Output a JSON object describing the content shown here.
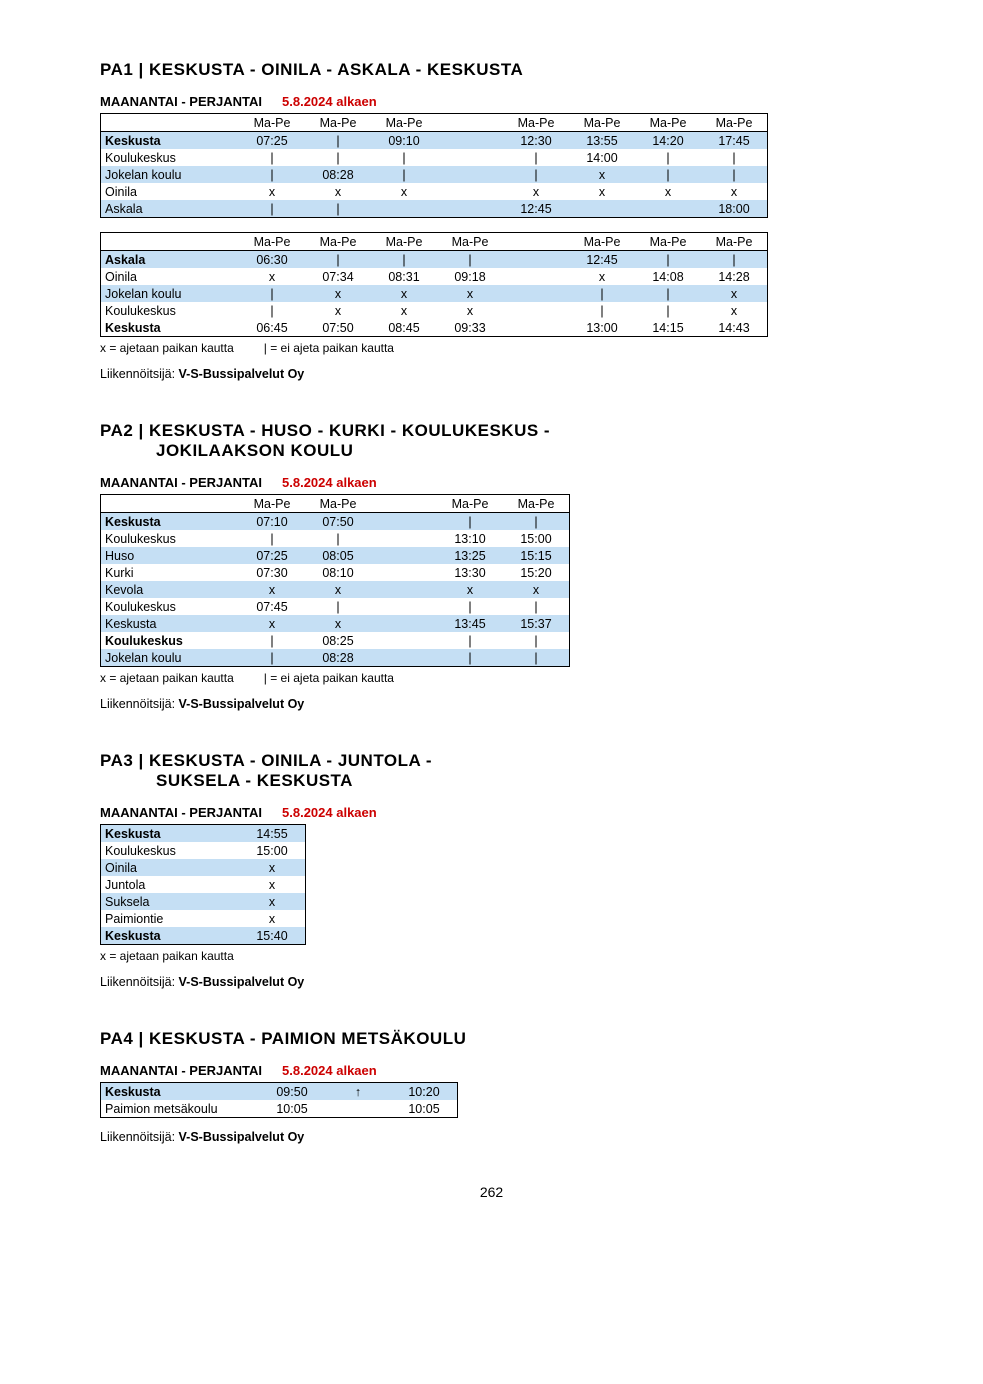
{
  "page_number": "262",
  "colors": {
    "row_highlight": "#c5dff4",
    "effective_date": "#cc0000",
    "border": "#000000",
    "text": "#000000"
  },
  "legend": {
    "x_text": "x  = ajetaan paikan kautta",
    "pipe_text": "|  = ei ajeta paikan kautta",
    "x_only": "x  = ajetaan paikan kautta"
  },
  "operator_label": "Liikennöitsijä:",
  "operator_name": "V-S-Bussipalvelut Oy",
  "routes": [
    {
      "code": "PA1",
      "title_lines": [
        "PA1 |  KESKUSTA - OINILA - ASKALA - KESKUSTA"
      ],
      "days": "MAANANTAI - PERJANTAI",
      "effective": "5.8.2024 alkaen",
      "tables": [
        {
          "n_cols": 8,
          "headers": [
            "Ma-Pe",
            "Ma-Pe",
            "Ma-Pe",
            "",
            "Ma-Pe",
            "Ma-Pe",
            "Ma-Pe",
            "Ma-Pe"
          ],
          "rows": [
            {
              "stop": "Keskusta",
              "bold": true,
              "blue": true,
              "vals": [
                "07:25",
                "|",
                "09:10",
                "",
                "12:30",
                "13:55",
                "14:20",
                "17:45"
              ]
            },
            {
              "stop": "Koulukeskus",
              "bold": false,
              "blue": false,
              "vals": [
                "|",
                "|",
                "|",
                "",
                "|",
                "14:00",
                "|",
                "|"
              ]
            },
            {
              "stop": "Jokelan koulu",
              "bold": false,
              "blue": true,
              "vals": [
                "|",
                "08:28",
                "|",
                "",
                "|",
                "x",
                "|",
                "|"
              ]
            },
            {
              "stop": "Oinila",
              "bold": false,
              "blue": false,
              "vals": [
                "x",
                "x",
                "x",
                "",
                "x",
                "x",
                "x",
                "x"
              ]
            },
            {
              "stop": "Askala",
              "bold": false,
              "blue": true,
              "last": true,
              "arrow": "down",
              "vals": [
                "|",
                "|",
                "",
                "",
                "12:45",
                "",
                "",
                "18:00"
              ]
            }
          ]
        },
        {
          "n_cols": 8,
          "headers": [
            "Ma-Pe",
            "Ma-Pe",
            "Ma-Pe",
            "Ma-Pe",
            "",
            "Ma-Pe",
            "Ma-Pe",
            "Ma-Pe"
          ],
          "rows": [
            {
              "stop": "Askala",
              "bold": true,
              "blue": true,
              "vals": [
                "06:30",
                "|",
                "|",
                "|",
                "",
                "12:45",
                "|",
                "|"
              ]
            },
            {
              "stop": "Oinila",
              "bold": false,
              "blue": false,
              "vals": [
                "x",
                "07:34",
                "08:31",
                "09:18",
                "",
                "x",
                "14:08",
                "14:28"
              ]
            },
            {
              "stop": "Jokelan koulu",
              "bold": false,
              "blue": true,
              "vals": [
                "|",
                "x",
                "x",
                "x",
                "",
                "|",
                "|",
                "x"
              ]
            },
            {
              "stop": "Koulukeskus",
              "bold": false,
              "blue": false,
              "vals": [
                "|",
                "x",
                "x",
                "x",
                "",
                "|",
                "|",
                "x"
              ]
            },
            {
              "stop": "Keskusta",
              "bold": true,
              "blue": false,
              "last": true,
              "arrow": "down",
              "vals": [
                "06:45",
                "07:50",
                "08:45",
                "09:33",
                "",
                "13:00",
                "14:15",
                "14:43"
              ]
            }
          ]
        }
      ],
      "legend_mode": "both"
    },
    {
      "code": "PA2",
      "title_lines": [
        "PA2 |  KESKUSTA - HUSO - KURKI - KOULUKESKUS -",
        "JOKILAAKSON KOULU"
      ],
      "days": "MAANANTAI - PERJANTAI",
      "effective": "5.8.2024 alkaen",
      "tables": [
        {
          "n_cols": 5,
          "headers": [
            "Ma-Pe",
            "Ma-Pe",
            "",
            "Ma-Pe",
            "Ma-Pe"
          ],
          "rows": [
            {
              "stop": "Keskusta",
              "bold": true,
              "blue": true,
              "vals": [
                "07:10",
                "07:50",
                "",
                "|",
                "|"
              ]
            },
            {
              "stop": "Koulukeskus",
              "bold": false,
              "blue": false,
              "vals": [
                "|",
                "|",
                "",
                "13:10",
                "15:00"
              ]
            },
            {
              "stop": "Huso",
              "bold": false,
              "blue": true,
              "vals": [
                "07:25",
                "08:05",
                "",
                "13:25",
                "15:15"
              ]
            },
            {
              "stop": "Kurki",
              "bold": false,
              "blue": false,
              "vals": [
                "07:30",
                "08:10",
                "",
                "13:30",
                "15:20"
              ]
            },
            {
              "stop": "Kevola",
              "bold": false,
              "blue": true,
              "vals": [
                "x",
                "x",
                "",
                "x",
                "x"
              ]
            },
            {
              "stop": "Koulukeskus",
              "bold": false,
              "blue": false,
              "vals": [
                "07:45",
                "|",
                "",
                "|",
                "|"
              ]
            },
            {
              "stop": "Keskusta",
              "bold": false,
              "blue": true,
              "vals": [
                "x",
                "x",
                "",
                "13:45",
                "15:37"
              ]
            },
            {
              "stop": "Koulukeskus",
              "bold": true,
              "blue": false,
              "vals": [
                "|",
                "08:25",
                "",
                "|",
                "|"
              ]
            },
            {
              "stop": "Jokelan koulu",
              "bold": false,
              "blue": true,
              "last": true,
              "arrow": "down",
              "vals": [
                "|",
                "08:28",
                "",
                "|",
                "|"
              ]
            }
          ]
        }
      ],
      "legend_mode": "both"
    },
    {
      "code": "PA3",
      "title_lines": [
        "PA3 |  KESKUSTA - OINILA - JUNTOLA -",
        "SUKSELA - KESKUSTA"
      ],
      "days": "MAANANTAI - PERJANTAI",
      "effective": "5.8.2024 alkaen",
      "tables": [
        {
          "n_cols": 1,
          "headers": null,
          "rows": [
            {
              "stop": "Keskusta",
              "bold": true,
              "blue": true,
              "vals": [
                "14:55"
              ]
            },
            {
              "stop": "Koulukeskus",
              "bold": false,
              "blue": false,
              "vals": [
                "15:00"
              ]
            },
            {
              "stop": "Oinila",
              "bold": false,
              "blue": true,
              "vals": [
                "x"
              ]
            },
            {
              "stop": "Juntola",
              "bold": false,
              "blue": false,
              "vals": [
                "x"
              ]
            },
            {
              "stop": "Suksela",
              "bold": false,
              "blue": true,
              "vals": [
                "x"
              ]
            },
            {
              "stop": "Paimiontie",
              "bold": false,
              "blue": false,
              "vals": [
                "x"
              ]
            },
            {
              "stop": "Keskusta",
              "bold": true,
              "blue": true,
              "last": true,
              "arrow": "down",
              "vals": [
                "15:40"
              ]
            }
          ]
        }
      ],
      "legend_mode": "x_only"
    },
    {
      "code": "PA4",
      "title_lines": [
        "PA4 |  KESKUSTA - PAIMION METSÄKOULU"
      ],
      "days": "MAANANTAI - PERJANTAI",
      "effective": "5.8.2024 alkaen",
      "tables": [
        {
          "n_cols": 3,
          "headers": null,
          "rows": [
            {
              "stop": "Keskusta",
              "bold": true,
              "blue": true,
              "vals": [
                "09:50",
                "↑",
                "10:20"
              ]
            },
            {
              "stop": "Paimion metsäkoulu",
              "bold": false,
              "blue": false,
              "last": true,
              "arrow": "down",
              "vals": [
                "10:05",
                "",
                "10:05"
              ]
            }
          ]
        }
      ],
      "legend_mode": "none",
      "stop_width": 150
    }
  ]
}
